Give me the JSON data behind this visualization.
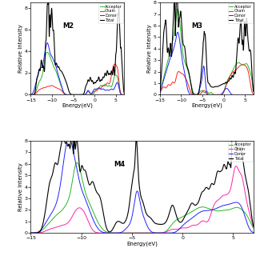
{
  "panels": [
    {
      "label": "M2",
      "xlim": [
        -15,
        7
      ],
      "ylim": [
        0,
        8.5
      ],
      "yticks": [
        0,
        2,
        4,
        6,
        8
      ],
      "xticks": [
        -15,
        -10,
        -5,
        0,
        5
      ],
      "ylabel": "Relative Intensity",
      "xlabel": "Energy(eV)",
      "chain_color": "#ff2222",
      "acceptor_color": "#22bb22",
      "donor_color": "#2222ff",
      "total_color": "#000000"
    },
    {
      "label": "M3",
      "xlim": [
        -15,
        7
      ],
      "ylim": [
        0,
        8
      ],
      "yticks": [
        0,
        1,
        2,
        3,
        4,
        5,
        6,
        7,
        8
      ],
      "xticks": [
        -15,
        -10,
        -5,
        0,
        5
      ],
      "ylabel": "Relative Intensity",
      "xlabel": "Energy(eV)",
      "chain_color": "#ff2222",
      "acceptor_color": "#22bb22",
      "donor_color": "#2222ff",
      "total_color": "#000000"
    },
    {
      "label": "M4",
      "xlim": [
        -15,
        7
      ],
      "ylim": [
        0,
        8
      ],
      "yticks": [
        0,
        1,
        2,
        3,
        4,
        5,
        6,
        7,
        8
      ],
      "xticks": [
        -15,
        -10,
        -5,
        0,
        5
      ],
      "ylabel": "Relative Intensity",
      "xlabel": "Energy(eV)",
      "chain_color": "#ff22aa",
      "acceptor_color": "#22bb22",
      "donor_color": "#2222ff",
      "total_color": "#000000"
    }
  ],
  "legend_labels": [
    "Acceptor",
    "Chain",
    "Donor",
    "Total"
  ]
}
